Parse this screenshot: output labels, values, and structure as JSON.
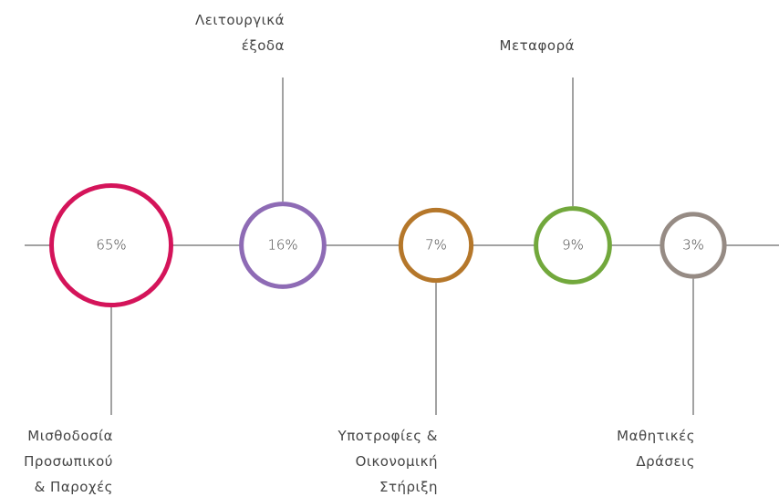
{
  "chart_data": {
    "type": "bubble",
    "categories": [
      "Μισθοδοσία\nΠροσωπικού\n& Παροχές",
      "Λειτουργικά\nέξοδα",
      "Υποτροφίες &\nΟικονομική\nΣτήριξη",
      "Μεταφορά",
      "Μαθητικές\nΔράσεις"
    ],
    "values": [
      65,
      16,
      7,
      9,
      3
    ],
    "value_labels": [
      "65%",
      "16%",
      "7%",
      "9%",
      "3%"
    ],
    "colors": [
      "#d4145a",
      "#8e6bb5",
      "#b5772a",
      "#72a83c",
      "#968b84"
    ]
  }
}
